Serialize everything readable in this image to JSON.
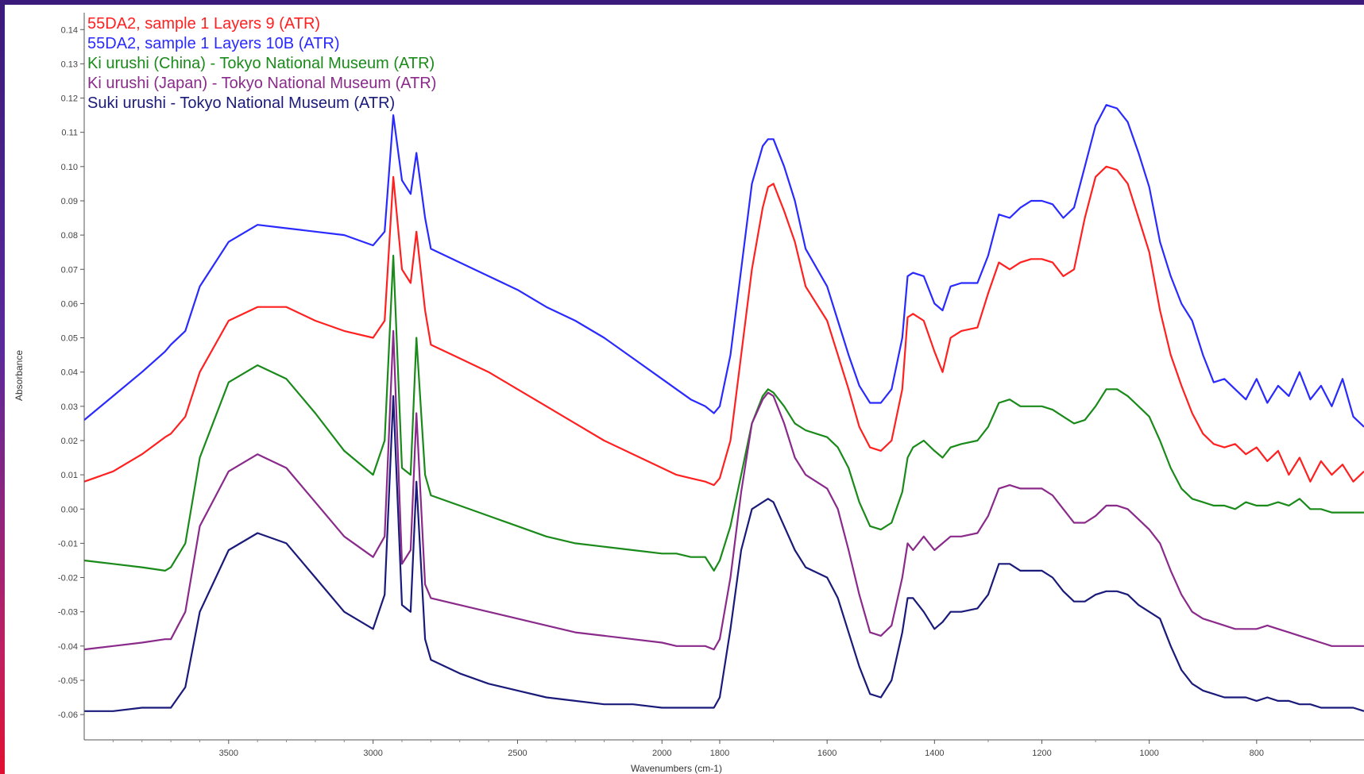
{
  "chart_data": {
    "type": "line",
    "xlabel": "Wavenumbers (cm-1)",
    "ylabel": "Absorbance",
    "xlim": [
      4000,
      600
    ],
    "ylim": [
      -0.066,
      0.144
    ],
    "x_reversed": true,
    "x_ticks": [
      3500,
      3000,
      2500,
      2000,
      1800,
      1600,
      1400,
      1200,
      1000,
      800
    ],
    "y_ticks": [
      0.14,
      0.13,
      0.12,
      0.11,
      0.1,
      0.09,
      0.08,
      0.07,
      0.06,
      0.05,
      0.04,
      0.03,
      0.02,
      0.01,
      0.0,
      -0.01,
      -0.02,
      -0.03,
      -0.04,
      -0.05,
      -0.06
    ],
    "y_tick_labels": [
      "0.14",
      "0.13",
      "0.12",
      "0.11",
      "0.10",
      "0.09",
      "0.08",
      "0.07",
      "0.06",
      "0.05",
      "0.04",
      "0.03",
      "0.02",
      "0.01",
      "0.00",
      "-0.01",
      "-0.02",
      "-0.03",
      "-0.04",
      "-0.05",
      "-0.06"
    ],
    "x_tick_labels": [
      "3500",
      "3000",
      "2500",
      "2000",
      "1800",
      "1600",
      "1400",
      "1200",
      "1000",
      "800"
    ],
    "legend_placement": "top-left",
    "grid": false,
    "series": [
      {
        "name": "55DA2, sample 1 Layers 9 (ATR)",
        "color": "#ff2020",
        "x": [
          4000,
          3900,
          3800,
          3720,
          3700,
          3650,
          3600,
          3500,
          3400,
          3300,
          3200,
          3100,
          3000,
          2960,
          2930,
          2900,
          2870,
          2850,
          2820,
          2800,
          2700,
          2600,
          2500,
          2400,
          2300,
          2200,
          2100,
          2000,
          1950,
          1900,
          1850,
          1820,
          1800,
          1780,
          1760,
          1740,
          1720,
          1710,
          1700,
          1680,
          1660,
          1640,
          1600,
          1580,
          1560,
          1540,
          1520,
          1500,
          1480,
          1460,
          1450,
          1440,
          1420,
          1400,
          1385,
          1370,
          1350,
          1320,
          1300,
          1280,
          1260,
          1240,
          1220,
          1200,
          1180,
          1160,
          1140,
          1120,
          1100,
          1080,
          1060,
          1040,
          1020,
          1000,
          980,
          960,
          940,
          920,
          900,
          880,
          860,
          840,
          820,
          800,
          780,
          760,
          740,
          720,
          700,
          680,
          660,
          640,
          620,
          600
        ],
        "y": [
          0.008,
          0.011,
          0.016,
          0.021,
          0.022,
          0.027,
          0.04,
          0.055,
          0.059,
          0.059,
          0.055,
          0.052,
          0.05,
          0.055,
          0.097,
          0.07,
          0.066,
          0.081,
          0.058,
          0.048,
          0.044,
          0.04,
          0.035,
          0.03,
          0.025,
          0.02,
          0.016,
          0.012,
          0.01,
          0.009,
          0.008,
          0.007,
          0.009,
          0.02,
          0.045,
          0.07,
          0.088,
          0.094,
          0.095,
          0.087,
          0.078,
          0.065,
          0.055,
          0.045,
          0.035,
          0.024,
          0.018,
          0.017,
          0.02,
          0.035,
          0.056,
          0.057,
          0.055,
          0.046,
          0.04,
          0.05,
          0.052,
          0.053,
          0.063,
          0.072,
          0.07,
          0.072,
          0.073,
          0.073,
          0.072,
          0.068,
          0.07,
          0.085,
          0.097,
          0.1,
          0.099,
          0.095,
          0.085,
          0.075,
          0.058,
          0.045,
          0.036,
          0.028,
          0.022,
          0.019,
          0.018,
          0.019,
          0.016,
          0.018,
          0.014,
          0.017,
          0.01,
          0.015,
          0.008,
          0.014,
          0.01,
          0.013,
          0.008,
          0.011
        ]
      },
      {
        "name": "55DA2, sample 1 Layers 10B (ATR)",
        "color": "#2a2aff",
        "x": [
          4000,
          3900,
          3800,
          3720,
          3700,
          3650,
          3600,
          3500,
          3400,
          3300,
          3200,
          3100,
          3000,
          2960,
          2930,
          2900,
          2870,
          2850,
          2820,
          2800,
          2700,
          2600,
          2500,
          2400,
          2300,
          2200,
          2100,
          2000,
          1950,
          1900,
          1850,
          1820,
          1800,
          1780,
          1760,
          1740,
          1720,
          1710,
          1700,
          1680,
          1660,
          1640,
          1600,
          1580,
          1560,
          1540,
          1520,
          1500,
          1480,
          1460,
          1450,
          1440,
          1420,
          1400,
          1385,
          1370,
          1350,
          1320,
          1300,
          1280,
          1260,
          1240,
          1220,
          1200,
          1180,
          1160,
          1140,
          1120,
          1100,
          1080,
          1060,
          1040,
          1020,
          1000,
          980,
          960,
          940,
          920,
          900,
          880,
          860,
          840,
          820,
          800,
          780,
          760,
          740,
          720,
          700,
          680,
          660,
          640,
          620,
          600
        ],
        "y": [
          0.026,
          0.033,
          0.04,
          0.046,
          0.048,
          0.052,
          0.065,
          0.078,
          0.083,
          0.082,
          0.081,
          0.08,
          0.077,
          0.081,
          0.115,
          0.096,
          0.092,
          0.104,
          0.085,
          0.076,
          0.072,
          0.068,
          0.064,
          0.059,
          0.055,
          0.05,
          0.044,
          0.038,
          0.035,
          0.032,
          0.03,
          0.028,
          0.03,
          0.045,
          0.07,
          0.095,
          0.106,
          0.108,
          0.108,
          0.1,
          0.09,
          0.076,
          0.065,
          0.055,
          0.045,
          0.036,
          0.031,
          0.031,
          0.035,
          0.05,
          0.068,
          0.069,
          0.068,
          0.06,
          0.058,
          0.065,
          0.066,
          0.066,
          0.074,
          0.086,
          0.085,
          0.088,
          0.09,
          0.09,
          0.089,
          0.085,
          0.088,
          0.1,
          0.112,
          0.118,
          0.117,
          0.113,
          0.104,
          0.094,
          0.078,
          0.068,
          0.06,
          0.055,
          0.045,
          0.037,
          0.038,
          0.035,
          0.032,
          0.038,
          0.031,
          0.036,
          0.033,
          0.04,
          0.032,
          0.036,
          0.03,
          0.038,
          0.027,
          0.024
        ]
      },
      {
        "name": "Ki urushi (China) - Tokyo National Museum (ATR)",
        "color": "#1a8a1a",
        "x": [
          4000,
          3900,
          3800,
          3720,
          3700,
          3650,
          3600,
          3500,
          3400,
          3300,
          3200,
          3100,
          3000,
          2960,
          2930,
          2900,
          2870,
          2850,
          2820,
          2800,
          2700,
          2600,
          2500,
          2400,
          2300,
          2200,
          2100,
          2000,
          1950,
          1900,
          1850,
          1820,
          1800,
          1780,
          1760,
          1740,
          1720,
          1710,
          1700,
          1680,
          1660,
          1640,
          1600,
          1580,
          1560,
          1540,
          1520,
          1500,
          1480,
          1460,
          1450,
          1440,
          1420,
          1400,
          1385,
          1370,
          1350,
          1320,
          1300,
          1280,
          1260,
          1240,
          1220,
          1200,
          1180,
          1160,
          1140,
          1120,
          1100,
          1080,
          1060,
          1040,
          1020,
          1000,
          980,
          960,
          940,
          920,
          900,
          880,
          860,
          840,
          820,
          800,
          780,
          760,
          740,
          720,
          700,
          680,
          660,
          640,
          620,
          600
        ],
        "y": [
          -0.015,
          -0.016,
          -0.017,
          -0.018,
          -0.017,
          -0.01,
          0.015,
          0.037,
          0.042,
          0.038,
          0.028,
          0.017,
          0.01,
          0.02,
          0.074,
          0.012,
          0.01,
          0.05,
          0.01,
          0.004,
          0.001,
          -0.002,
          -0.005,
          -0.008,
          -0.01,
          -0.011,
          -0.012,
          -0.013,
          -0.013,
          -0.014,
          -0.014,
          -0.018,
          -0.015,
          -0.005,
          0.01,
          0.025,
          0.033,
          0.035,
          0.034,
          0.03,
          0.025,
          0.023,
          0.021,
          0.018,
          0.012,
          0.002,
          -0.005,
          -0.006,
          -0.004,
          0.005,
          0.015,
          0.018,
          0.02,
          0.017,
          0.015,
          0.018,
          0.019,
          0.02,
          0.024,
          0.031,
          0.032,
          0.03,
          0.03,
          0.03,
          0.029,
          0.027,
          0.025,
          0.026,
          0.03,
          0.035,
          0.035,
          0.033,
          0.03,
          0.027,
          0.02,
          0.012,
          0.006,
          0.003,
          0.002,
          0.001,
          0.001,
          0.0,
          0.002,
          0.001,
          0.001,
          0.002,
          0.001,
          0.003,
          0.0,
          0.0,
          -0.001,
          -0.001,
          -0.001,
          -0.001
        ]
      },
      {
        "name": "Ki urushi (Japan) - Tokyo National Museum (ATR)",
        "color": "#8a2a8a",
        "x": [
          4000,
          3900,
          3800,
          3720,
          3700,
          3650,
          3600,
          3500,
          3400,
          3300,
          3200,
          3100,
          3000,
          2960,
          2930,
          2900,
          2870,
          2850,
          2820,
          2800,
          2700,
          2600,
          2500,
          2400,
          2300,
          2200,
          2100,
          2000,
          1950,
          1900,
          1850,
          1820,
          1800,
          1780,
          1760,
          1740,
          1720,
          1710,
          1700,
          1680,
          1660,
          1640,
          1600,
          1580,
          1560,
          1540,
          1520,
          1500,
          1480,
          1460,
          1450,
          1440,
          1420,
          1400,
          1385,
          1370,
          1350,
          1320,
          1300,
          1280,
          1260,
          1240,
          1220,
          1200,
          1180,
          1160,
          1140,
          1120,
          1100,
          1080,
          1060,
          1040,
          1020,
          1000,
          980,
          960,
          940,
          920,
          900,
          880,
          860,
          840,
          820,
          800,
          780,
          760,
          740,
          720,
          700,
          680,
          660,
          640,
          620,
          600
        ],
        "y": [
          -0.041,
          -0.04,
          -0.039,
          -0.038,
          -0.038,
          -0.03,
          -0.005,
          0.011,
          0.016,
          0.012,
          0.002,
          -0.008,
          -0.014,
          -0.008,
          0.052,
          -0.016,
          -0.012,
          0.028,
          -0.022,
          -0.026,
          -0.028,
          -0.03,
          -0.032,
          -0.034,
          -0.036,
          -0.037,
          -0.038,
          -0.039,
          -0.04,
          -0.04,
          -0.04,
          -0.041,
          -0.038,
          -0.02,
          0.005,
          0.025,
          0.032,
          0.034,
          0.033,
          0.025,
          0.015,
          0.01,
          0.006,
          0.0,
          -0.012,
          -0.025,
          -0.036,
          -0.037,
          -0.034,
          -0.02,
          -0.01,
          -0.012,
          -0.008,
          -0.012,
          -0.01,
          -0.008,
          -0.008,
          -0.007,
          -0.002,
          0.006,
          0.007,
          0.006,
          0.006,
          0.006,
          0.004,
          0.0,
          -0.004,
          -0.004,
          -0.002,
          0.001,
          0.001,
          0.0,
          -0.003,
          -0.006,
          -0.01,
          -0.018,
          -0.025,
          -0.03,
          -0.032,
          -0.033,
          -0.034,
          -0.035,
          -0.035,
          -0.035,
          -0.034,
          -0.035,
          -0.036,
          -0.037,
          -0.038,
          -0.039,
          -0.04,
          -0.04,
          -0.04,
          -0.04
        ]
      },
      {
        "name": "Suki urushi - Tokyo National Museum (ATR)",
        "color": "#1a1a7a",
        "x": [
          4000,
          3900,
          3800,
          3720,
          3700,
          3650,
          3600,
          3500,
          3400,
          3300,
          3200,
          3100,
          3000,
          2960,
          2930,
          2900,
          2870,
          2850,
          2820,
          2800,
          2700,
          2600,
          2500,
          2400,
          2300,
          2200,
          2100,
          2000,
          1950,
          1900,
          1850,
          1820,
          1800,
          1780,
          1760,
          1740,
          1720,
          1710,
          1700,
          1680,
          1660,
          1640,
          1600,
          1580,
          1560,
          1540,
          1520,
          1500,
          1480,
          1460,
          1450,
          1440,
          1420,
          1400,
          1385,
          1370,
          1350,
          1320,
          1300,
          1280,
          1260,
          1240,
          1220,
          1200,
          1180,
          1160,
          1140,
          1120,
          1100,
          1080,
          1060,
          1040,
          1020,
          1000,
          980,
          960,
          940,
          920,
          900,
          880,
          860,
          840,
          820,
          800,
          780,
          760,
          740,
          720,
          700,
          680,
          660,
          640,
          620,
          600
        ],
        "y": [
          -0.059,
          -0.059,
          -0.058,
          -0.058,
          -0.058,
          -0.052,
          -0.03,
          -0.012,
          -0.007,
          -0.01,
          -0.02,
          -0.03,
          -0.035,
          -0.025,
          0.033,
          -0.028,
          -0.03,
          0.008,
          -0.038,
          -0.044,
          -0.048,
          -0.051,
          -0.053,
          -0.055,
          -0.056,
          -0.057,
          -0.057,
          -0.058,
          -0.058,
          -0.058,
          -0.058,
          -0.058,
          -0.055,
          -0.035,
          -0.012,
          0.0,
          0.002,
          0.003,
          0.002,
          -0.005,
          -0.012,
          -0.017,
          -0.02,
          -0.026,
          -0.036,
          -0.046,
          -0.054,
          -0.055,
          -0.05,
          -0.036,
          -0.026,
          -0.026,
          -0.03,
          -0.035,
          -0.033,
          -0.03,
          -0.03,
          -0.029,
          -0.025,
          -0.016,
          -0.016,
          -0.018,
          -0.018,
          -0.018,
          -0.02,
          -0.024,
          -0.027,
          -0.027,
          -0.025,
          -0.024,
          -0.024,
          -0.025,
          -0.028,
          -0.03,
          -0.032,
          -0.04,
          -0.047,
          -0.051,
          -0.053,
          -0.054,
          -0.055,
          -0.055,
          -0.055,
          -0.056,
          -0.055,
          -0.056,
          -0.056,
          -0.057,
          -0.057,
          -0.058,
          -0.058,
          -0.058,
          -0.058,
          -0.059
        ]
      }
    ]
  }
}
